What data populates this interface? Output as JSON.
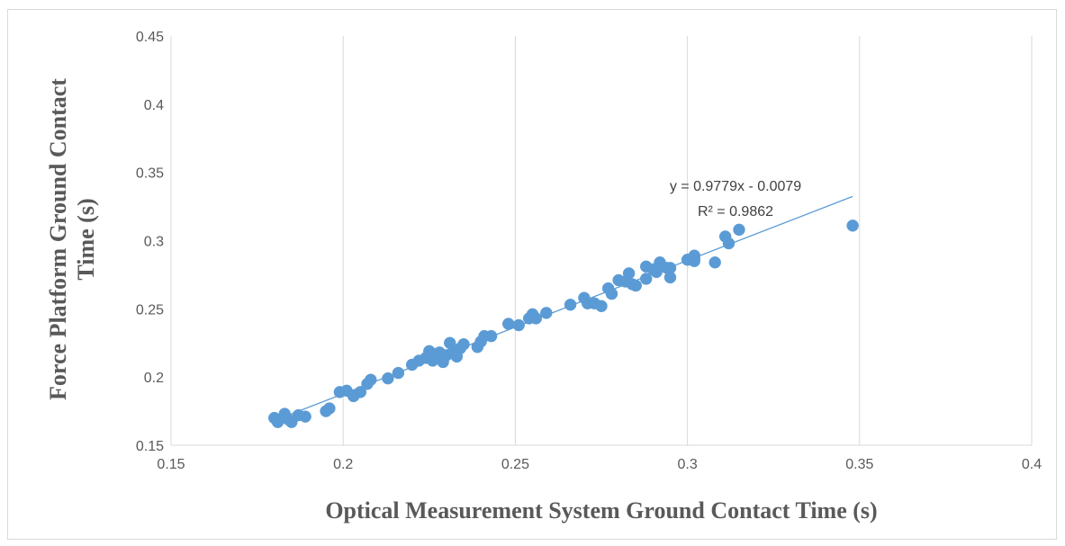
{
  "chart_data": {
    "type": "scatter",
    "title": "",
    "xlabel": "Optical Measurement System Ground Contact Time (s)",
    "ylabel_lines": [
      "Force Platform Ground Contact",
      "Time (s)"
    ],
    "xlim": [
      0.15,
      0.4
    ],
    "ylim": [
      0.15,
      0.45
    ],
    "xticks": [
      "0.15",
      "0.2",
      "0.25",
      "0.3",
      "0.35",
      "0.4"
    ],
    "yticks": [
      "0.15",
      "0.2",
      "0.25",
      "0.3",
      "0.35",
      "0.4",
      "0.45"
    ],
    "grid": "vertical",
    "marker_color": "#5b9bd5",
    "trendline_color": "#5b9bd5",
    "trendline": {
      "slope": 0.9779,
      "intercept": -0.0079,
      "x_range": [
        0.18,
        0.348
      ],
      "equation": "y = 0.9779x - 0.0079",
      "r2_label": "R² = 0.9862"
    },
    "points": [
      [
        0.18,
        0.17
      ],
      [
        0.181,
        0.167
      ],
      [
        0.183,
        0.173
      ],
      [
        0.184,
        0.169
      ],
      [
        0.185,
        0.167
      ],
      [
        0.187,
        0.172
      ],
      [
        0.189,
        0.171
      ],
      [
        0.195,
        0.175
      ],
      [
        0.196,
        0.177
      ],
      [
        0.199,
        0.189
      ],
      [
        0.201,
        0.19
      ],
      [
        0.203,
        0.186
      ],
      [
        0.205,
        0.189
      ],
      [
        0.207,
        0.195
      ],
      [
        0.208,
        0.198
      ],
      [
        0.213,
        0.199
      ],
      [
        0.216,
        0.203
      ],
      [
        0.22,
        0.209
      ],
      [
        0.222,
        0.212
      ],
      [
        0.224,
        0.214
      ],
      [
        0.225,
        0.219
      ],
      [
        0.226,
        0.212
      ],
      [
        0.227,
        0.217
      ],
      [
        0.228,
        0.218
      ],
      [
        0.229,
        0.211
      ],
      [
        0.23,
        0.216
      ],
      [
        0.231,
        0.225
      ],
      [
        0.232,
        0.219
      ],
      [
        0.233,
        0.215
      ],
      [
        0.234,
        0.221
      ],
      [
        0.235,
        0.224
      ],
      [
        0.239,
        0.222
      ],
      [
        0.24,
        0.226
      ],
      [
        0.241,
        0.23
      ],
      [
        0.243,
        0.23
      ],
      [
        0.248,
        0.239
      ],
      [
        0.251,
        0.238
      ],
      [
        0.254,
        0.243
      ],
      [
        0.255,
        0.246
      ],
      [
        0.256,
        0.243
      ],
      [
        0.259,
        0.247
      ],
      [
        0.266,
        0.253
      ],
      [
        0.27,
        0.258
      ],
      [
        0.271,
        0.254
      ],
      [
        0.273,
        0.254
      ],
      [
        0.275,
        0.252
      ],
      [
        0.277,
        0.265
      ],
      [
        0.278,
        0.261
      ],
      [
        0.28,
        0.271
      ],
      [
        0.282,
        0.27
      ],
      [
        0.283,
        0.276
      ],
      [
        0.284,
        0.268
      ],
      [
        0.285,
        0.267
      ],
      [
        0.288,
        0.281
      ],
      [
        0.288,
        0.272
      ],
      [
        0.29,
        0.279
      ],
      [
        0.291,
        0.277
      ],
      [
        0.292,
        0.284
      ],
      [
        0.294,
        0.28
      ],
      [
        0.295,
        0.28
      ],
      [
        0.295,
        0.273
      ],
      [
        0.3,
        0.286
      ],
      [
        0.302,
        0.287
      ],
      [
        0.302,
        0.289
      ],
      [
        0.302,
        0.285
      ],
      [
        0.308,
        0.284
      ],
      [
        0.311,
        0.303
      ],
      [
        0.312,
        0.298
      ],
      [
        0.315,
        0.308
      ],
      [
        0.348,
        0.311
      ]
    ]
  }
}
